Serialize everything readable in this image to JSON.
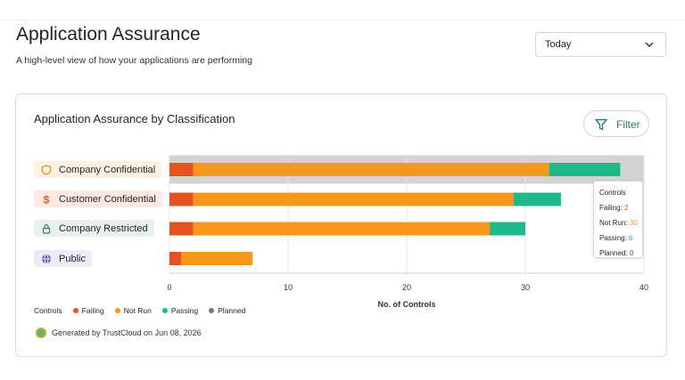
{
  "page": {
    "title": "Application Assurance",
    "subtitle": "A high-level view of how your applications are performing"
  },
  "date_select": {
    "value": "Today",
    "icon": "chevron-down-icon"
  },
  "card": {
    "title": "Application Assurance by Classification",
    "filter_label": "Filter",
    "filter_icon": "funnel-icon"
  },
  "categories": [
    {
      "label": "Company Confidential",
      "icon": "shield-icon",
      "bg": "#fdf1e2",
      "icon_color": "#e8900f"
    },
    {
      "label": "Customer Confidential",
      "icon": "dollar-icon",
      "bg": "#fde8e2",
      "icon_color": "#e4572e"
    },
    {
      "label": "Company Restricted",
      "icon": "lock-icon",
      "bg": "#e7f2ee",
      "icon_color": "#3e7a63"
    },
    {
      "label": "Public",
      "icon": "globe-icon",
      "bg": "#ecebf6",
      "icon_color": "#6c5fb0"
    }
  ],
  "chart_data": {
    "type": "bar",
    "orientation": "horizontal",
    "stacked": true,
    "categories": [
      "Company Confidential",
      "Customer Confidential",
      "Company Restricted",
      "Public"
    ],
    "series": [
      {
        "name": "Failing",
        "color": "#e4531f",
        "values": [
          2,
          2,
          2,
          1
        ]
      },
      {
        "name": "Not Run",
        "color": "#f7981c",
        "values": [
          30,
          27,
          25,
          6
        ]
      },
      {
        "name": "Passing",
        "color": "#1db989",
        "values": [
          6,
          4,
          3,
          0
        ]
      },
      {
        "name": "Planned",
        "color": "#c9c9c9",
        "values": [
          0,
          0,
          0,
          0
        ]
      }
    ],
    "highlighted_category": "Company Confidential",
    "highlight_color": "#d3d3d3",
    "xlabel": "No. of Controls",
    "xlim": [
      0,
      40
    ],
    "xticks": [
      0,
      10,
      20,
      30,
      40
    ],
    "grid": true,
    "legend_title": "Controls",
    "legend_position": "bottom-left"
  },
  "tooltip": {
    "title": "Controls",
    "rows": [
      {
        "label": "Failing:",
        "value": "2",
        "color": "#e4531f"
      },
      {
        "label": "Not Run:",
        "value": "30",
        "color": "#f7981c"
      },
      {
        "label": "Passing:",
        "value": "6",
        "color": "#1db989"
      },
      {
        "label": "Planned:",
        "value": "0",
        "color": "#555555"
      }
    ]
  },
  "footer": {
    "generated": "Generated by TrustCloud on Jun 08, 2026"
  }
}
